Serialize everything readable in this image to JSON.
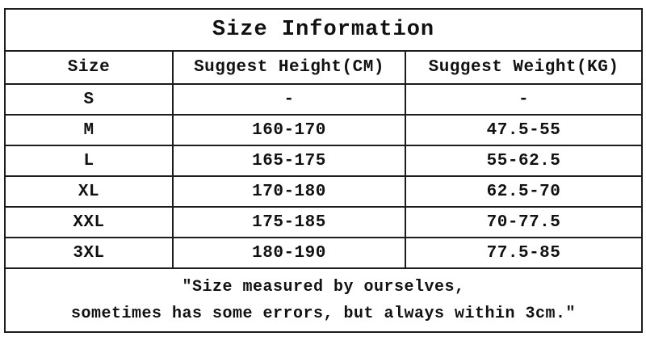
{
  "size_table": {
    "title": "Size Information",
    "columns": [
      "Size",
      "Suggest Height(CM)",
      "Suggest Weight(KG)"
    ],
    "rows": [
      {
        "size": "S",
        "height": "-",
        "weight": "-"
      },
      {
        "size": "M",
        "height": "160-170",
        "weight": "47.5-55"
      },
      {
        "size": "L",
        "height": "165-175",
        "weight": "55-62.5"
      },
      {
        "size": "XL",
        "height": "170-180",
        "weight": "62.5-70"
      },
      {
        "size": "XXL",
        "height": "175-185",
        "weight": "70-77.5"
      },
      {
        "size": "3XL",
        "height": "180-190",
        "weight": "77.5-85"
      }
    ],
    "note_line1": "″Size measured by ourselves,",
    "note_line2": "sometimes has some errors, but always within 3cm.″",
    "colors": {
      "border": "#1c1c1c",
      "text": "#111111",
      "background": "#ffffff"
    }
  }
}
